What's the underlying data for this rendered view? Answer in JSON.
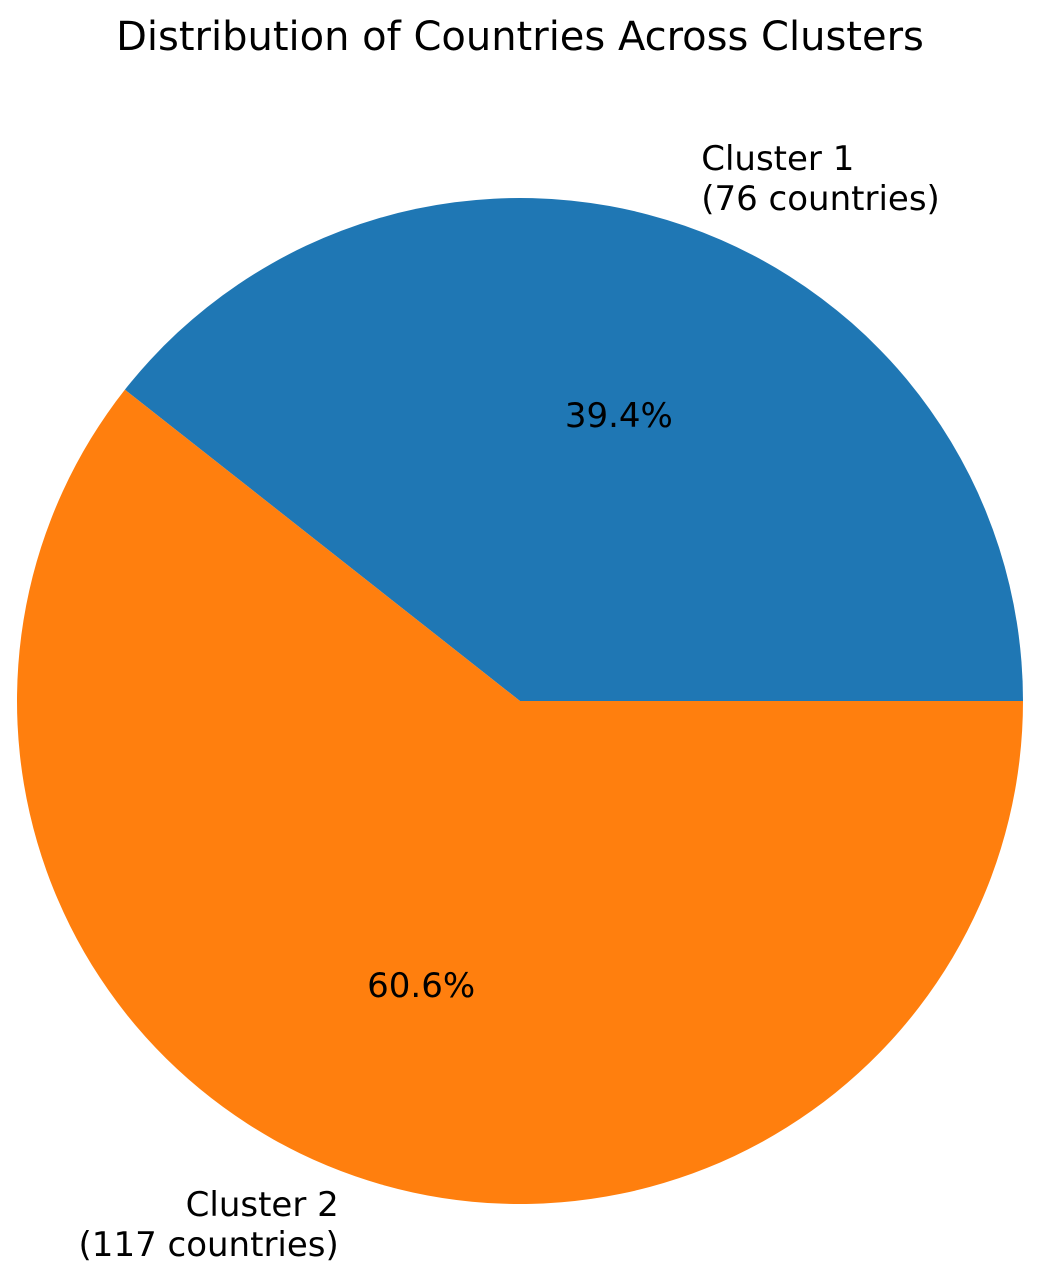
{
  "chart_data": {
    "type": "pie",
    "title": "Distribution of Countries Across Clusters",
    "start_angle_deg": 0,
    "direction": "counterclockwise",
    "slices": [
      {
        "label_line1": "Cluster 1",
        "label_line2": "(76 countries)",
        "value": 76,
        "percent_label": "39.4%",
        "color": "#1f77b4"
      },
      {
        "label_line1": "Cluster 2",
        "label_line2": "(117 countries)",
        "value": 117,
        "percent_label": "60.6%",
        "color": "#ff7f0e"
      }
    ]
  }
}
